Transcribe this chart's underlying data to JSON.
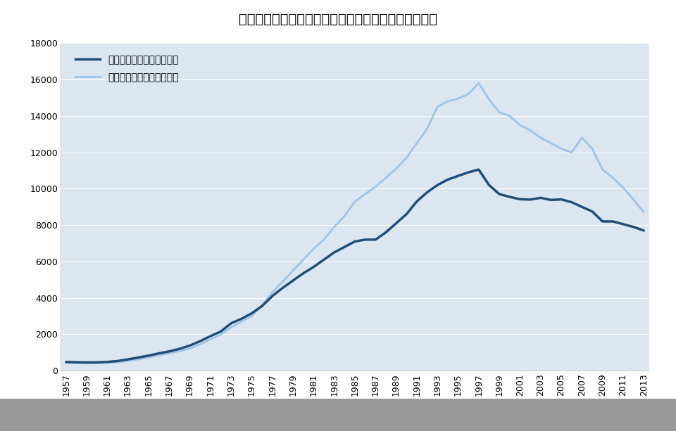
{
  "title": "書籍・雑誌の売り上げ推移（出版科学研究所による）",
  "years": [
    1957,
    1958,
    1959,
    1960,
    1961,
    1962,
    1963,
    1964,
    1965,
    1966,
    1967,
    1968,
    1969,
    1970,
    1971,
    1972,
    1973,
    1974,
    1975,
    1976,
    1977,
    1978,
    1979,
    1980,
    1981,
    1982,
    1983,
    1984,
    1985,
    1986,
    1987,
    1988,
    1989,
    1990,
    1991,
    1992,
    1993,
    1994,
    1995,
    1996,
    1997,
    1998,
    1999,
    2000,
    2001,
    2002,
    2003,
    2004,
    2005,
    2006,
    2007,
    2008,
    2009,
    2010,
    2011,
    2012,
    2013
  ],
  "books": [
    480,
    460,
    450,
    455,
    480,
    530,
    620,
    720,
    830,
    950,
    1060,
    1200,
    1380,
    1620,
    1900,
    2150,
    2600,
    2850,
    3150,
    3550,
    4100,
    4550,
    4950,
    5350,
    5700,
    6100,
    6500,
    6800,
    7100,
    7200,
    7200,
    7600,
    8100,
    8600,
    9300,
    9800,
    10200,
    10500,
    10700,
    10900,
    11050,
    10200,
    9700,
    9550,
    9420,
    9400,
    9500,
    9380,
    9410,
    9260,
    9000,
    8750,
    8200,
    8200,
    8050,
    7900,
    7700
  ],
  "magazines": [
    430,
    415,
    415,
    415,
    435,
    465,
    540,
    630,
    730,
    840,
    950,
    1080,
    1220,
    1450,
    1720,
    1980,
    2380,
    2700,
    3000,
    3600,
    4300,
    4900,
    5500,
    6100,
    6700,
    7200,
    7900,
    8500,
    9300,
    9700,
    10100,
    10600,
    11100,
    11700,
    12500,
    13300,
    14500,
    14800,
    14950,
    15200,
    15800,
    14900,
    14200,
    14000,
    13500,
    13200,
    12800,
    12500,
    12200,
    12000,
    12800,
    12200,
    11050,
    10600,
    10050,
    9400,
    8700
  ],
  "book_color": "#1f4e79",
  "magazine_color": "#9dc3e6",
  "plot_bg_color": "#dce6f1",
  "fig_bg_color": "#ffffff",
  "bottom_bar_color": "#999999",
  "grid_color": "#ffffff",
  "legend_book": "書籍推定販売金額（億円）",
  "legend_magazine": "雑誌推定販売金額（億円）",
  "ylim": [
    0,
    18000
  ],
  "yticks": [
    0,
    2000,
    4000,
    6000,
    8000,
    10000,
    12000,
    14000,
    16000,
    18000
  ],
  "xtick_years": [
    1957,
    1959,
    1961,
    1963,
    1965,
    1967,
    1969,
    1971,
    1973,
    1975,
    1977,
    1979,
    1981,
    1983,
    1985,
    1987,
    1989,
    1991,
    1993,
    1995,
    1997,
    1999,
    2001,
    2003,
    2005,
    2007,
    2009,
    2011,
    2013
  ],
  "title_fontsize": 14,
  "tick_fontsize": 9,
  "legend_fontsize": 10,
  "book_linewidth": 2.5,
  "magazine_linewidth": 2.0
}
